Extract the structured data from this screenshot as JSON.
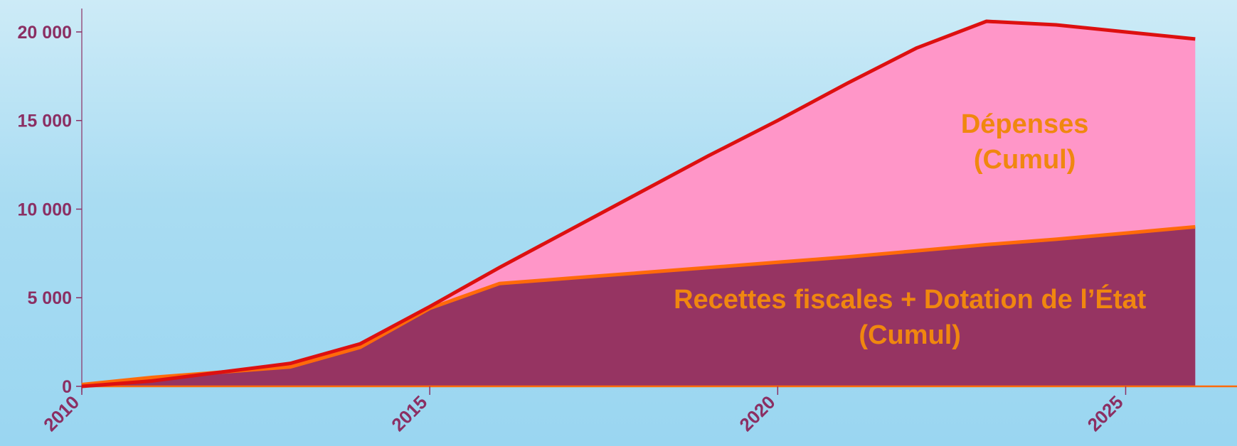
{
  "chart_data": {
    "type": "area",
    "x": [
      2010,
      2011,
      2012,
      2013,
      2014,
      2015,
      2016,
      2017,
      2018,
      2019,
      2020,
      2021,
      2022,
      2023,
      2024,
      2025,
      2026
    ],
    "xlim": [
      2010,
      2026.6
    ],
    "ylim": [
      0,
      21000
    ],
    "grid": false,
    "x_ticks": [
      {
        "value": 2010,
        "label": "2010"
      },
      {
        "value": 2015,
        "label": "2015"
      },
      {
        "value": 2020,
        "label": "2020"
      },
      {
        "value": 2025,
        "label": "2025"
      }
    ],
    "y_ticks": [
      {
        "value": 0,
        "label": "0"
      },
      {
        "value": 5000,
        "label": "5 000"
      },
      {
        "value": 10000,
        "label": "10 000"
      },
      {
        "value": 15000,
        "label": "15 000"
      },
      {
        "value": 20000,
        "label": "20 000"
      }
    ],
    "series": [
      {
        "key": "depenses",
        "fill_color": "#ff96c8",
        "line_color": "#dd1010",
        "values": [
          0,
          300,
          800,
          1300,
          2400,
          4500,
          6700,
          8800,
          10900,
          13000,
          15000,
          17100,
          19100,
          20600,
          20400,
          20000,
          19600
        ]
      },
      {
        "key": "recettes",
        "fill_color": "#963462",
        "line_color": "#ff6a0a",
        "values": [
          100,
          500,
          800,
          1100,
          2200,
          4400,
          5800,
          6100,
          6400,
          6700,
          7000,
          7300,
          7650,
          8000,
          8300,
          8650,
          9000
        ]
      }
    ],
    "annotations": [
      {
        "name": "depenses-label",
        "lines": [
          "Dépenses",
          "(Cumul)"
        ],
        "x": 2023.55,
        "y": 14300
      },
      {
        "name": "recettes-label",
        "lines": [
          "Recettes fiscales + Dotation de l’État",
          "(Cumul)"
        ],
        "x": 2021.9,
        "y": 4400
      }
    ],
    "colors": {
      "axis": "#8b2f63",
      "tick_text": "#8b2f63",
      "annotation_text": "#f0870f",
      "baseline": "#ff6a0a"
    }
  }
}
